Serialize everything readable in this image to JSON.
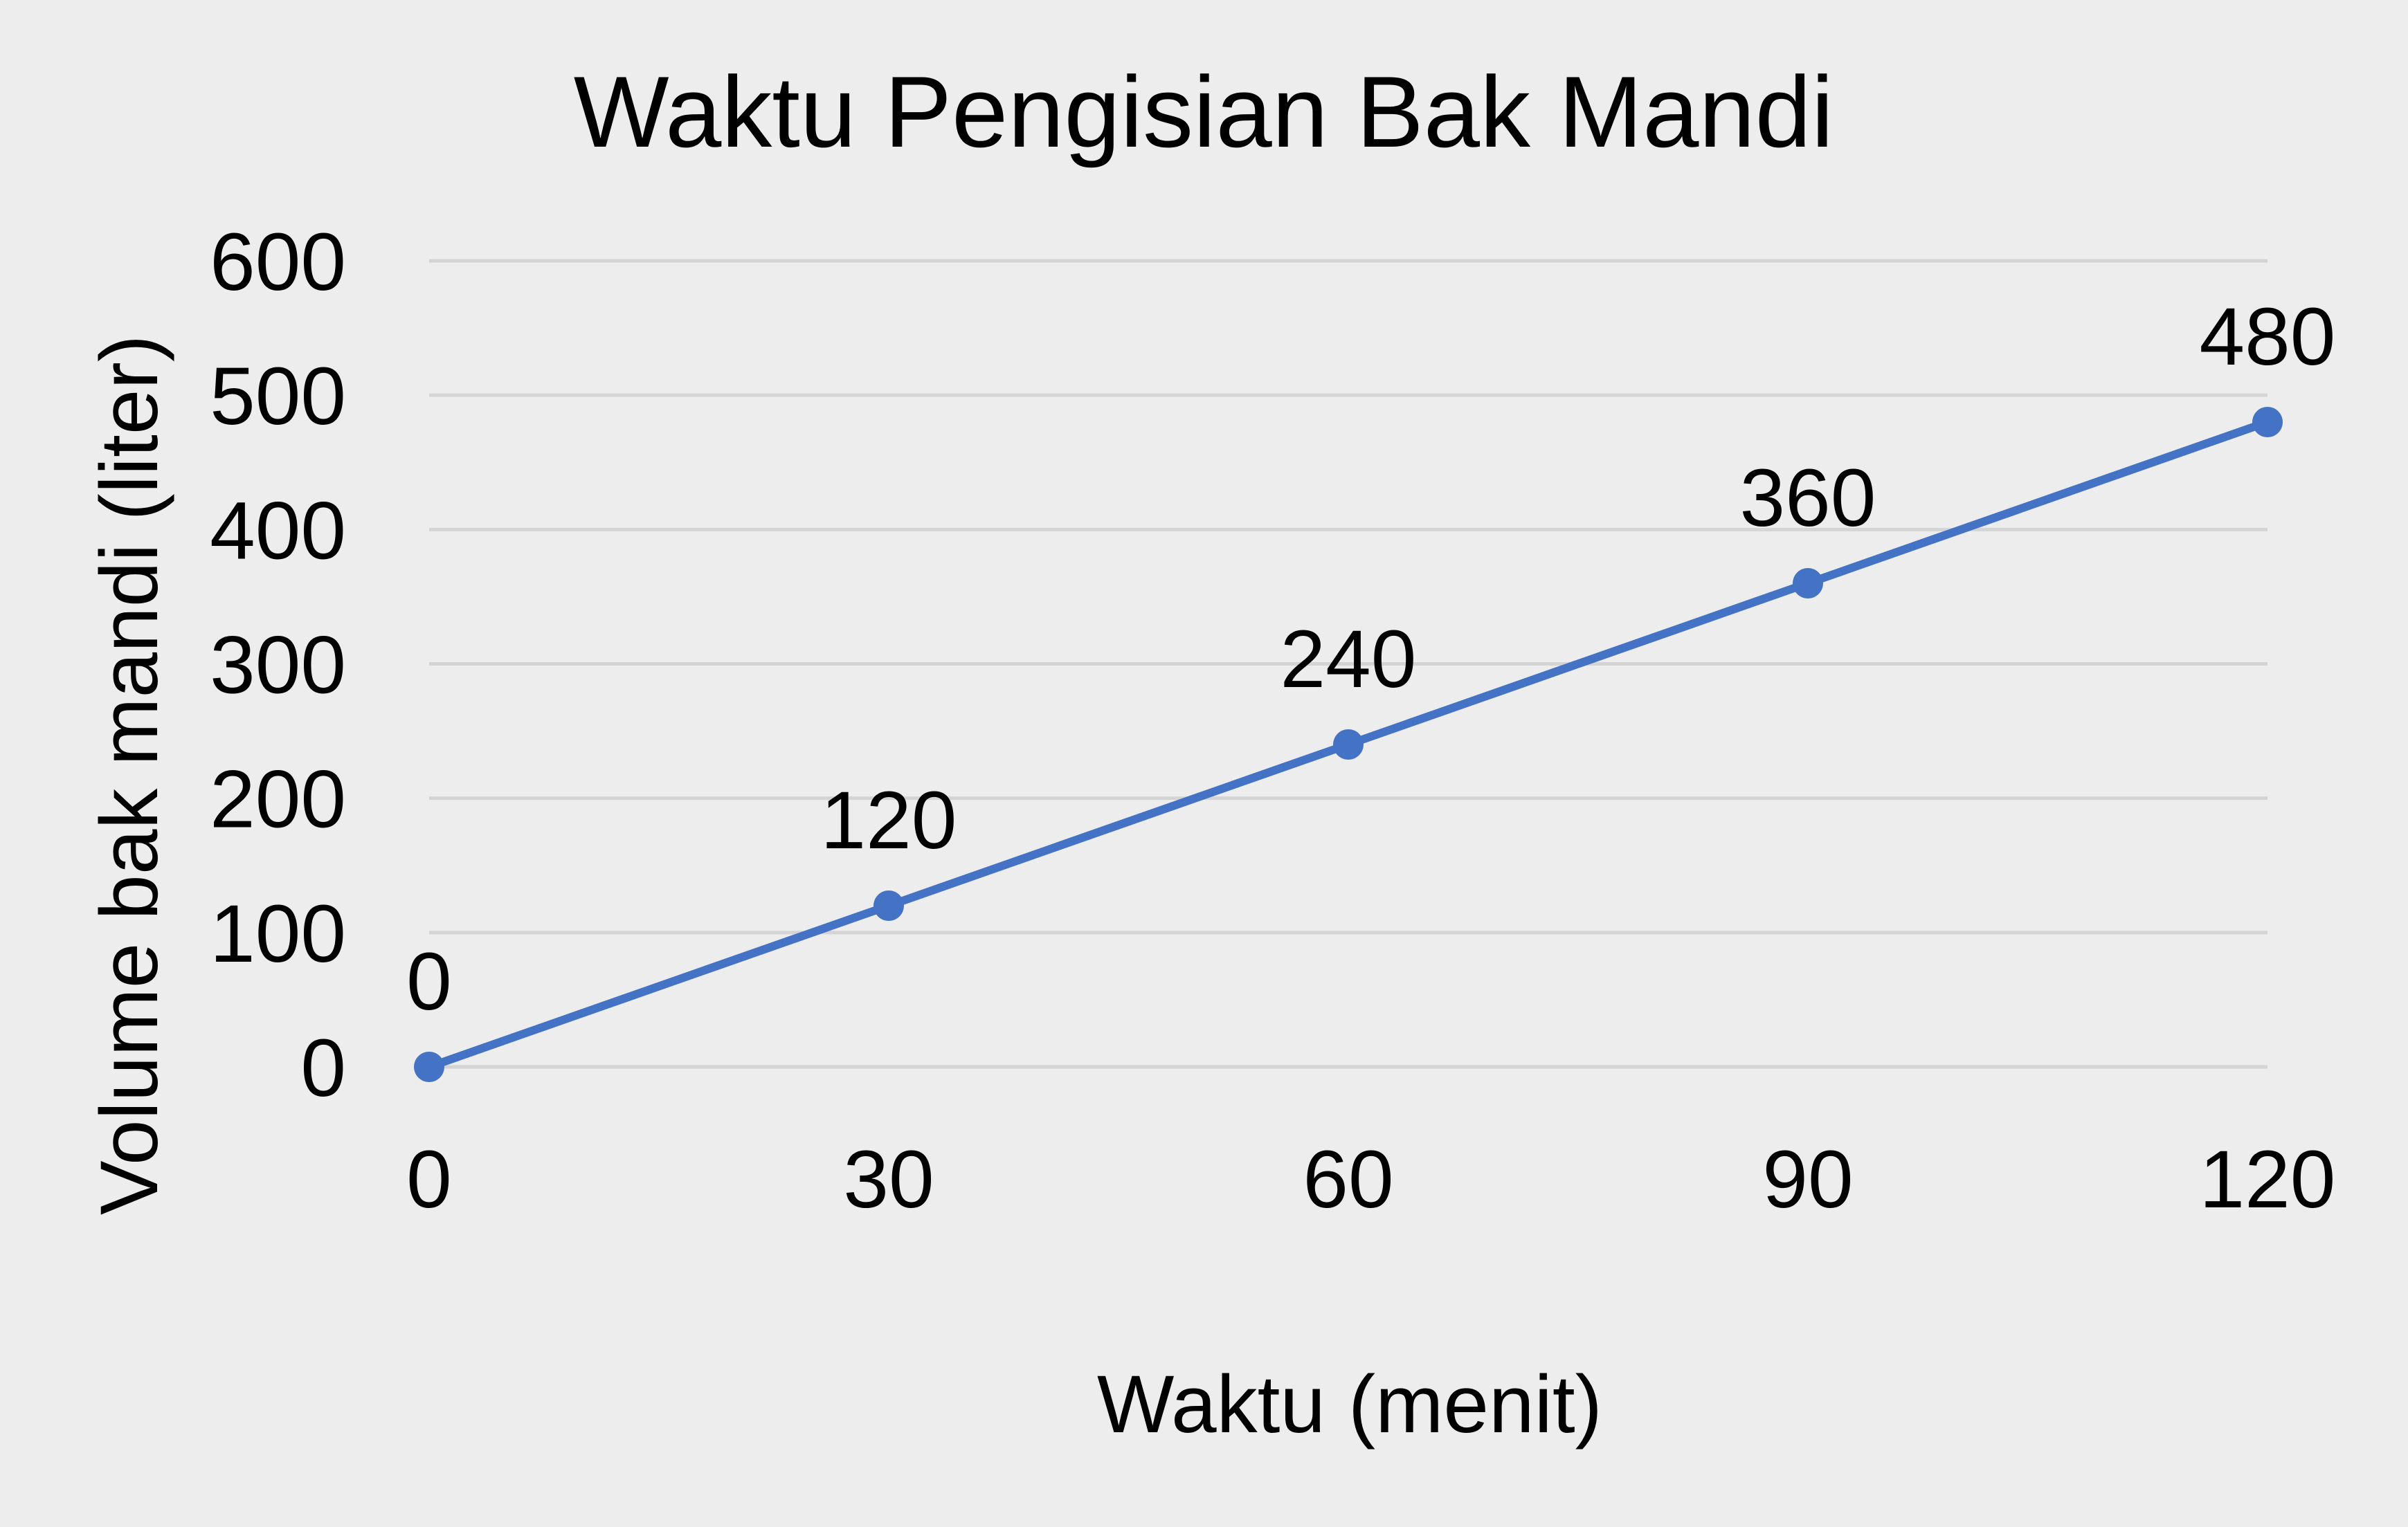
{
  "chart_data": {
    "type": "line",
    "title": "Waktu Pengisian Bak Mandi",
    "xlabel": "Waktu (menit)",
    "ylabel": "Volume bak mandi (liter)",
    "categories": [
      "0",
      "30",
      "60",
      "90",
      "120"
    ],
    "x": [
      0,
      30,
      60,
      90,
      120
    ],
    "series": [
      {
        "values": [
          0,
          120,
          240,
          360,
          480
        ],
        "data_labels": [
          "0",
          "120",
          "240",
          "360",
          "480"
        ],
        "color": "#4472c4"
      }
    ],
    "xlim": [
      0,
      120
    ],
    "ylim": [
      0,
      600
    ],
    "y_ticks": [
      0,
      100,
      200,
      300,
      400,
      500,
      600
    ],
    "y_tick_labels": [
      "0",
      "100",
      "200",
      "300",
      "400",
      "500",
      "600"
    ],
    "grid": true,
    "legend": "none",
    "background": "#ededed",
    "gridline_color": "#d4d4d4"
  }
}
